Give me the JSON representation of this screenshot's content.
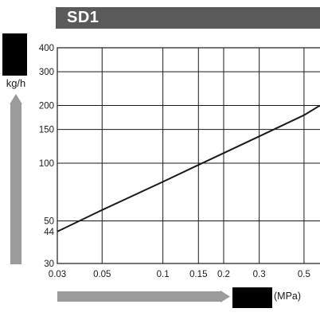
{
  "colors": {
    "title_bar": "#5a5a5a",
    "arrow": "#9b9b9b",
    "redaction": "#000000",
    "line": "#1a1a1a",
    "grid": "#1a1a1a"
  },
  "header": {
    "title": "SD1"
  },
  "axis_text": {
    "y_unit": "kg/h",
    "x_unit": "(MPa)"
  },
  "icons": {
    "y_arrow": "arrow-up-icon",
    "x_arrow": "arrow-right-icon"
  },
  "chart_data": {
    "type": "line",
    "title": "SD1",
    "xlabel": "(MPa)",
    "ylabel": "kg/h",
    "x_scale": "log",
    "y_scale": "log",
    "xlim": [
      0.03,
      0.6
    ],
    "ylim": [
      30,
      400
    ],
    "grid": true,
    "x_ticks": [
      {
        "value": 0.03,
        "label": "0.03"
      },
      {
        "value": 0.05,
        "label": "0.05"
      },
      {
        "value": 0.1,
        "label": "0.1"
      },
      {
        "value": 0.15,
        "label": "0.15"
      },
      {
        "value": 0.2,
        "label": "0.2"
      },
      {
        "value": 0.3,
        "label": "0.3"
      },
      {
        "value": 0.5,
        "label": "0.5"
      }
    ],
    "y_ticks": [
      {
        "value": 30,
        "label": "30"
      },
      {
        "value": 44,
        "label": "44"
      },
      {
        "value": 50,
        "label": "50"
      },
      {
        "value": 100,
        "label": "100"
      },
      {
        "value": 150,
        "label": "150"
      },
      {
        "value": 200,
        "label": "200"
      },
      {
        "value": 300,
        "label": "300"
      },
      {
        "value": 400,
        "label": "400"
      }
    ],
    "x_gridlines": [
      0.05,
      0.1,
      0.15,
      0.2,
      0.3,
      0.5
    ],
    "y_gridlines": [
      50,
      100,
      150,
      200,
      300
    ],
    "series": [
      {
        "x": [
          0.03,
          0.05,
          0.1,
          0.15,
          0.2,
          0.3,
          0.5,
          0.6
        ],
        "y": [
          44,
          57,
          80,
          98,
          113,
          138,
          178,
          200
        ]
      }
    ]
  }
}
